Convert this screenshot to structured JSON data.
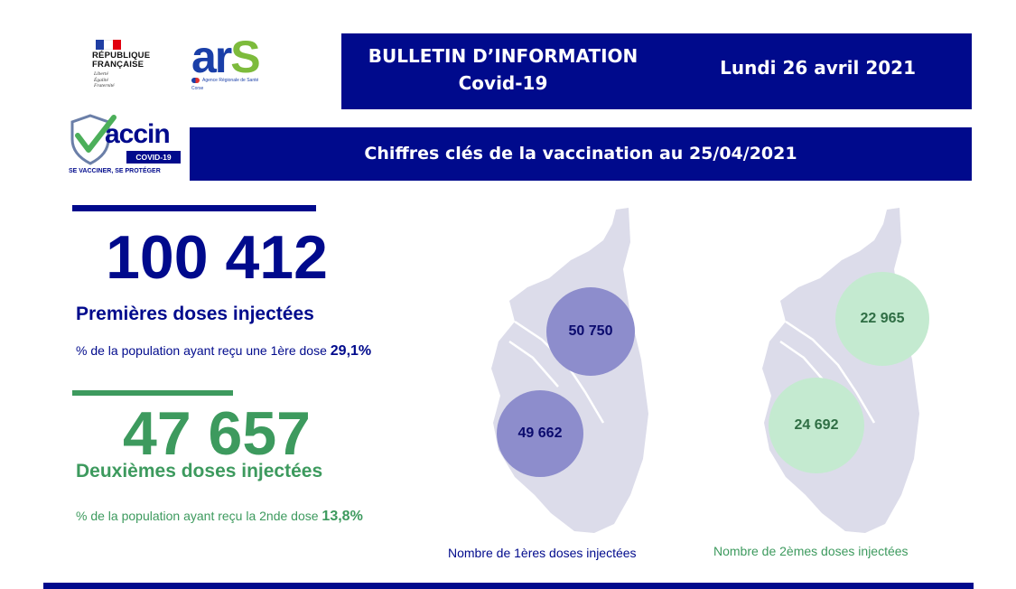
{
  "logos": {
    "republique": {
      "title_line1": "RÉPUBLIQUE",
      "title_line2": "FRANÇAISE",
      "motto_1": "Liberté",
      "motto_2": "Égalité",
      "motto_3": "Fraternité"
    },
    "ars": {
      "main_letters": "ar",
      "s_letter": "S",
      "agency": "Agence Régionale de Santé",
      "region": "Corse"
    },
    "vaccin": {
      "word": "accin",
      "tag": "COVID-19",
      "motto": "SE VACCINER, SE PROTÉGER"
    }
  },
  "header": {
    "title_line1": "BULLETIN D’INFORMATION",
    "title_line2": "Covid-19",
    "date": "Lundi 26 avril 2021"
  },
  "subtitle": "Chiffres clés de la vaccination au 25/04/2021",
  "first_doses": {
    "total": "100 412",
    "label": "Premières doses injectées",
    "pct_text": "% de la population ayant reçu une 1ère dose",
    "pct_value": "29,1%"
  },
  "second_doses": {
    "total": "47 657",
    "label": "Deuxièmes doses injectées",
    "pct_text": "% de la population ayant reçu la 2nde dose",
    "pct_value": "13,8%"
  },
  "maps": {
    "first": {
      "north_value": "50 750",
      "south_value": "49 662",
      "caption": "Nombre de 1ères doses injectées"
    },
    "second": {
      "north_value": "22 965",
      "south_value": "24 692",
      "caption": "Nombre de 2èmes doses injectées"
    }
  },
  "colors": {
    "navy": "#000a8c",
    "green": "#3d9a5e",
    "bubble_blue": "#8d8dcc",
    "bubble_green": "#c4ead0",
    "map_fill": "#dcdcea"
  }
}
